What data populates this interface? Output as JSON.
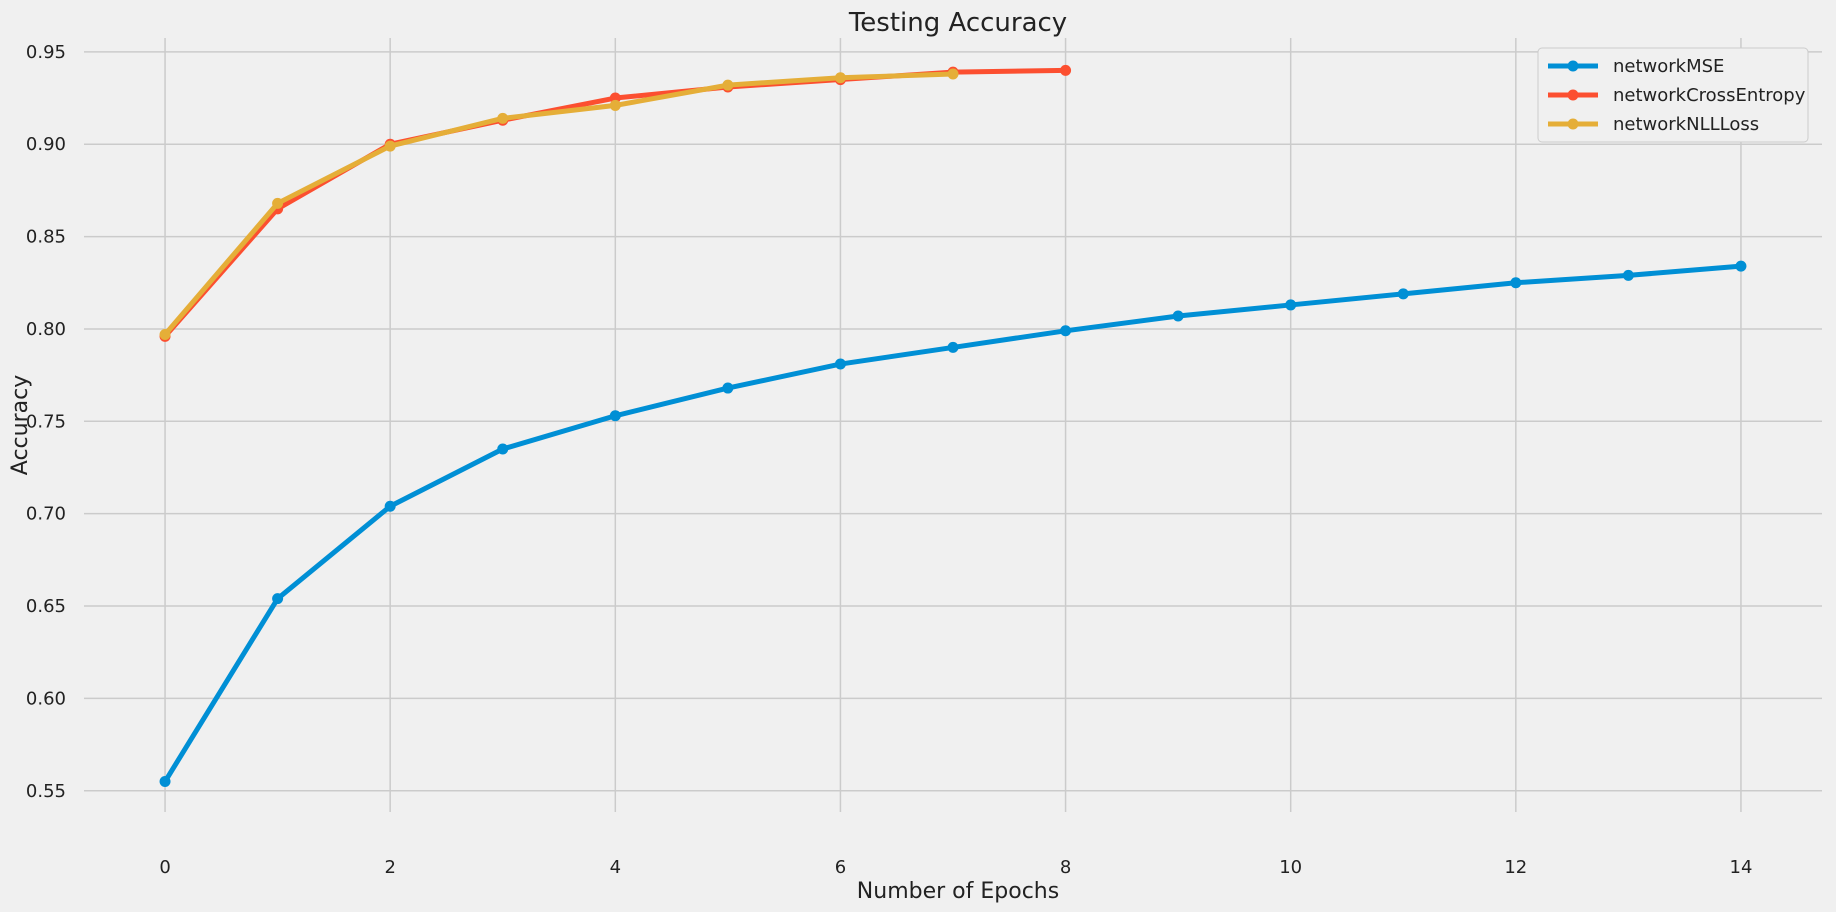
{
  "chart_data": {
    "type": "line",
    "title": "Testing Accuracy",
    "xlabel": "Number of Epochs",
    "ylabel": "Accuracy",
    "xlim": [
      -0.72,
      14.72
    ],
    "ylim": [
      0.5385,
      0.9575
    ],
    "xticks": [
      0,
      2,
      4,
      6,
      8,
      10,
      12,
      14
    ],
    "yticks": [
      0.55,
      0.6,
      0.65,
      0.7,
      0.75,
      0.8,
      0.85,
      0.9,
      0.95
    ],
    "ytick_labels": [
      "0.55",
      "0.60",
      "0.65",
      "0.70",
      "0.75",
      "0.80",
      "0.85",
      "0.90",
      "0.95"
    ],
    "grid": true,
    "legend_position": "top-right",
    "series": [
      {
        "name": "networkMSE",
        "color": "#008fd5",
        "x": [
          0,
          1,
          2,
          3,
          4,
          5,
          6,
          7,
          8,
          9,
          10,
          11,
          12,
          13,
          14
        ],
        "values": [
          0.555,
          0.654,
          0.704,
          0.735,
          0.753,
          0.768,
          0.781,
          0.79,
          0.799,
          0.807,
          0.813,
          0.819,
          0.825,
          0.829,
          0.834
        ]
      },
      {
        "name": "networkCrossEntropy",
        "color": "#fc4f30",
        "x": [
          0,
          1,
          2,
          3,
          4,
          5,
          6,
          7,
          8
        ],
        "values": [
          0.796,
          0.865,
          0.9,
          0.913,
          0.925,
          0.931,
          0.935,
          0.939,
          0.94
        ]
      },
      {
        "name": "networkNLLLoss",
        "color": "#e5ae38",
        "x": [
          0,
          1,
          2,
          3,
          4,
          5,
          6,
          7
        ],
        "values": [
          0.797,
          0.868,
          0.899,
          0.914,
          0.921,
          0.932,
          0.936,
          0.938
        ]
      }
    ]
  }
}
